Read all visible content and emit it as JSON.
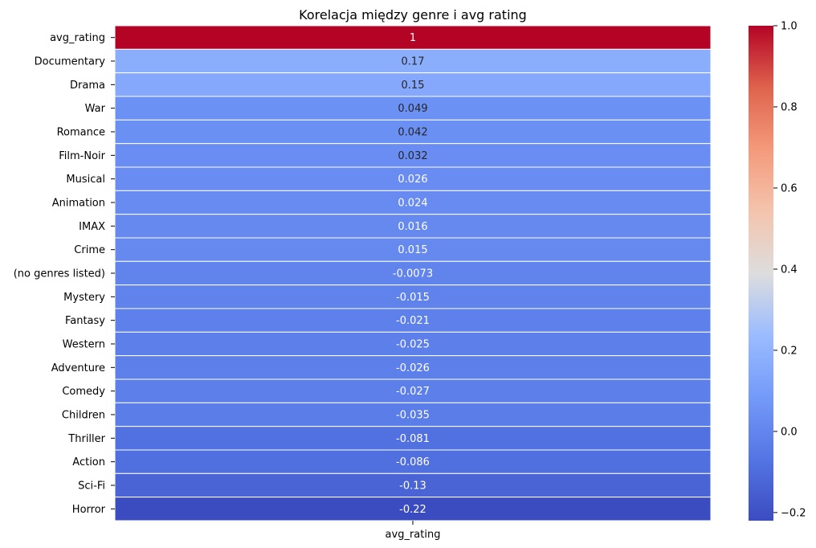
{
  "chart_data": {
    "type": "heatmap",
    "title": "Korelacja między genre i avg rating",
    "xlabel": "",
    "ylabel": "",
    "columns": [
      "avg_rating"
    ],
    "rows": [
      {
        "label": "avg_rating",
        "value": 1,
        "display": "1"
      },
      {
        "label": "Documentary",
        "value": 0.17,
        "display": "0.17"
      },
      {
        "label": "Drama",
        "value": 0.15,
        "display": "0.15"
      },
      {
        "label": "War",
        "value": 0.049,
        "display": "0.049"
      },
      {
        "label": "Romance",
        "value": 0.042,
        "display": "0.042"
      },
      {
        "label": "Film-Noir",
        "value": 0.032,
        "display": "0.032"
      },
      {
        "label": "Musical",
        "value": 0.026,
        "display": "0.026"
      },
      {
        "label": "Animation",
        "value": 0.024,
        "display": "0.024"
      },
      {
        "label": "IMAX",
        "value": 0.016,
        "display": "0.016"
      },
      {
        "label": "Crime",
        "value": 0.015,
        "display": "0.015"
      },
      {
        "label": "(no genres listed)",
        "value": -0.0073,
        "display": "-0.0073"
      },
      {
        "label": "Mystery",
        "value": -0.015,
        "display": "-0.015"
      },
      {
        "label": "Fantasy",
        "value": -0.021,
        "display": "-0.021"
      },
      {
        "label": "Western",
        "value": -0.025,
        "display": "-0.025"
      },
      {
        "label": "Adventure",
        "value": -0.026,
        "display": "-0.026"
      },
      {
        "label": "Comedy",
        "value": -0.027,
        "display": "-0.027"
      },
      {
        "label": "Children",
        "value": -0.035,
        "display": "-0.035"
      },
      {
        "label": "Thriller",
        "value": -0.081,
        "display": "-0.081"
      },
      {
        "label": "Action",
        "value": -0.086,
        "display": "-0.086"
      },
      {
        "label": "Sci-Fi",
        "value": -0.13,
        "display": "-0.13"
      },
      {
        "label": "Horror",
        "value": -0.22,
        "display": "-0.22"
      }
    ],
    "colormap": "coolwarm",
    "vmin": -0.22,
    "vmax": 1,
    "colorbar_ticks": [
      {
        "value": 1.0,
        "label": "1.0"
      },
      {
        "value": 0.8,
        "label": "0.8"
      },
      {
        "value": 0.6,
        "label": "0.6"
      },
      {
        "value": 0.4,
        "label": "0.4"
      },
      {
        "value": 0.2,
        "label": "0.2"
      },
      {
        "value": 0.0,
        "label": "0.0"
      },
      {
        "value": -0.2,
        "label": "−0.2"
      }
    ],
    "annotations": true,
    "grid": false,
    "legend": "colorbar-right"
  }
}
